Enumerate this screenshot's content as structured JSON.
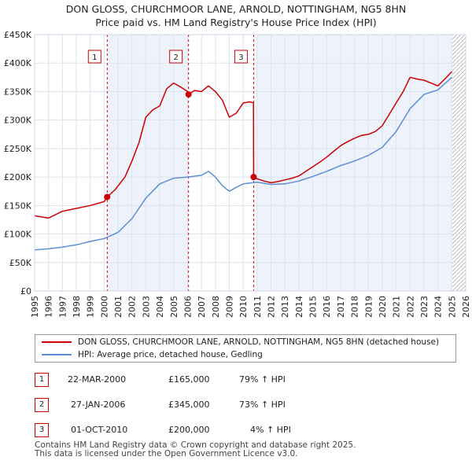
{
  "chart_data": {
    "type": "line",
    "title": "DON GLOSS, CHURCHMOOR LANE, ARNOLD, NOTTINGHAM, NG5 8HN",
    "subtitle": "Price paid vs. HM Land Registry's House Price Index (HPI)",
    "xlabel": "",
    "ylabel": "",
    "xlim": [
      1995,
      2026
    ],
    "ylim": [
      0,
      450000
    ],
    "x_ticks": [
      "1995",
      "1996",
      "1997",
      "1998",
      "1999",
      "2000",
      "2001",
      "2002",
      "2003",
      "2004",
      "2005",
      "2006",
      "2007",
      "2008",
      "2009",
      "2010",
      "2011",
      "2012",
      "2013",
      "2014",
      "2015",
      "2016",
      "2017",
      "2018",
      "2019",
      "2020",
      "2021",
      "2022",
      "2023",
      "2024",
      "2025",
      "2026"
    ],
    "y_ticks": [
      {
        "value": 0,
        "label": "£0"
      },
      {
        "value": 50000,
        "label": "£50K"
      },
      {
        "value": 100000,
        "label": "£100K"
      },
      {
        "value": 150000,
        "label": "£150K"
      },
      {
        "value": 200000,
        "label": "£200K"
      },
      {
        "value": 250000,
        "label": "£250K"
      },
      {
        "value": 300000,
        "label": "£300K"
      },
      {
        "value": 350000,
        "label": "£350K"
      },
      {
        "value": 400000,
        "label": "£400K"
      },
      {
        "value": 450000,
        "label": "£450K"
      }
    ],
    "grid": true,
    "shaded_ranges": [
      [
        2000.22,
        2006.07
      ],
      [
        2010.75,
        2025.0
      ]
    ],
    "forecast_start": 2025.0,
    "series": [
      {
        "name": "DON GLOSS, CHURCHMOOR LANE, ARNOLD, NOTTINGHAM, NG5 8HN (detached house)",
        "color": "#cc0000",
        "x": [
          1995.0,
          1996.0,
          1997.0,
          1998.0,
          1999.0,
          2000.0,
          2000.22,
          2000.8,
          2001.5,
          2002.0,
          2002.5,
          2003.0,
          2003.5,
          2004.0,
          2004.5,
          2005.0,
          2005.5,
          2006.0,
          2006.07,
          2006.5,
          2007.0,
          2007.5,
          2008.0,
          2008.5,
          2009.0,
          2009.5,
          2010.0,
          2010.5,
          2010.74,
          2010.75,
          2011.0,
          2011.5,
          2012.0,
          2012.5,
          2013.0,
          2013.5,
          2014.0,
          2014.5,
          2015.0,
          2015.5,
          2016.0,
          2016.5,
          2017.0,
          2017.5,
          2018.0,
          2018.5,
          2019.0,
          2019.5,
          2020.0,
          2020.5,
          2021.0,
          2021.5,
          2022.0,
          2022.5,
          2023.0,
          2023.5,
          2024.0,
          2024.5,
          2025.0
        ],
        "values": [
          132000,
          128000,
          140000,
          145000,
          150000,
          157000,
          165000,
          178000,
          200000,
          228000,
          260000,
          305000,
          318000,
          325000,
          355000,
          365000,
          358000,
          350000,
          345000,
          352000,
          350000,
          360000,
          350000,
          335000,
          305000,
          312000,
          330000,
          332000,
          330000,
          200000,
          197000,
          193000,
          190000,
          192000,
          195000,
          198000,
          202000,
          210000,
          218000,
          226000,
          235000,
          245000,
          255000,
          262000,
          268000,
          273000,
          275000,
          280000,
          290000,
          310000,
          330000,
          350000,
          375000,
          372000,
          370000,
          365000,
          360000,
          372000,
          385000
        ]
      },
      {
        "name": "HPI: Average price, detached house, Gedling",
        "color": "#5b8fd4",
        "x": [
          1995.0,
          1996.0,
          1997.0,
          1998.0,
          1999.0,
          2000.0,
          2001.0,
          2002.0,
          2003.0,
          2004.0,
          2005.0,
          2006.0,
          2007.0,
          2007.5,
          2008.0,
          2008.5,
          2009.0,
          2009.5,
          2010.0,
          2011.0,
          2012.0,
          2013.0,
          2014.0,
          2015.0,
          2016.0,
          2017.0,
          2018.0,
          2019.0,
          2020.0,
          2021.0,
          2022.0,
          2023.0,
          2024.0,
          2025.0
        ],
        "values": [
          72000,
          74000,
          77000,
          81000,
          87000,
          92000,
          103000,
          127000,
          163000,
          188000,
          198000,
          200000,
          203000,
          210000,
          200000,
          185000,
          175000,
          182000,
          188000,
          191000,
          187000,
          188000,
          193000,
          201000,
          210000,
          220000,
          228000,
          238000,
          252000,
          280000,
          320000,
          345000,
          353000,
          375000
        ]
      }
    ],
    "sales": [
      {
        "label": "1",
        "x": 2000.22,
        "value": 165000,
        "date": "22-MAR-2000",
        "price": "£165,000",
        "hpi": "79% ↑ HPI"
      },
      {
        "label": "2",
        "x": 2006.07,
        "value": 345000,
        "date": "27-JAN-2006",
        "price": "£345,000",
        "hpi": "73% ↑ HPI"
      },
      {
        "label": "3",
        "x": 2010.75,
        "value": 200000,
        "date": "01-OCT-2010",
        "price": "£200,000",
        "hpi": "4% ↑ HPI"
      }
    ]
  },
  "legend": {
    "red_label": "DON GLOSS, CHURCHMOOR LANE, ARNOLD, NOTTINGHAM, NG5 8HN (detached house)",
    "blue_label": "HPI: Average price, detached house, Gedling"
  },
  "footer": {
    "line1": "Contains HM Land Registry data © Crown copyright and database right 2025.",
    "line2": "This data is licensed under the Open Government Licence v3.0."
  }
}
